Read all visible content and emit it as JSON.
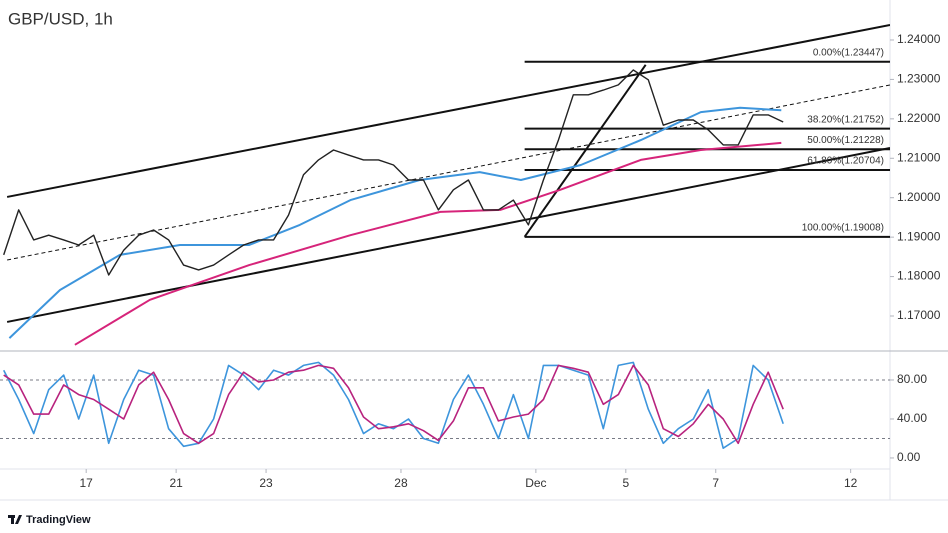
{
  "chart_data": [
    {
      "type": "line",
      "title": "GBP/USD, 1h",
      "xlim": [
        -46,
        429
      ],
      "ylim": [
        1.16138,
        1.25014
      ],
      "yticks": [
        {
          "value": 1.24,
          "label": "1.24000"
        },
        {
          "value": 1.23,
          "label": "1.23000"
        },
        {
          "value": 1.22,
          "label": "1.22000"
        },
        {
          "value": 1.21,
          "label": "1.21000"
        },
        {
          "value": 1.2,
          "label": "1.20000"
        },
        {
          "value": 1.19,
          "label": "1.19000"
        },
        {
          "value": 1.18,
          "label": "1.18000"
        },
        {
          "value": 1.17,
          "label": "1.17000"
        }
      ],
      "price": {
        "color": "#222222",
        "x": [
          -44,
          -36,
          -28,
          -20,
          -12,
          -4,
          4,
          12,
          20,
          28,
          36,
          44,
          52,
          60,
          68,
          76,
          84,
          92,
          100,
          108,
          116,
          124,
          132,
          140,
          148,
          156,
          164,
          172,
          180,
          188,
          196,
          204,
          212,
          220,
          228,
          236,
          244,
          252,
          260,
          268,
          276,
          284,
          292,
          300,
          308,
          316,
          324,
          332,
          340,
          348,
          356,
          364,
          372
        ],
        "values": [
          1.1855,
          1.1969,
          1.1893,
          1.1905,
          1.1893,
          1.188,
          1.1905,
          1.1804,
          1.1867,
          1.1905,
          1.1918,
          1.1893,
          1.1829,
          1.1817,
          1.1829,
          1.1855,
          1.188,
          1.1893,
          1.1893,
          1.1956,
          1.2058,
          1.2096,
          1.2121,
          1.2108,
          1.2096,
          1.2096,
          1.2083,
          1.2045,
          1.2045,
          1.1969,
          1.202,
          1.2045,
          1.1969,
          1.1969,
          1.1994,
          1.1931,
          1.2045,
          1.2146,
          1.2261,
          1.2261,
          1.2273,
          1.2286,
          1.2324,
          1.2299,
          1.2184,
          1.2197,
          1.2197,
          1.2172,
          1.2134,
          1.2134,
          1.221,
          1.221,
          1.2192
        ]
      },
      "ma": [
        {
          "color": "#3d95dc",
          "x": [
            -41,
            -14,
            18,
            50,
            87,
            114,
            141,
            178,
            210,
            232,
            264,
            296,
            328,
            349,
            371
          ],
          "values": [
            1.1644,
            1.1766,
            1.1855,
            1.188,
            1.188,
            1.1931,
            1.1994,
            1.2045,
            1.2065,
            1.2045,
            1.2083,
            1.2146,
            1.2217,
            1.2228,
            1.2222
          ]
        },
        {
          "color": "#d6247a",
          "x": [
            -6,
            34,
            87,
            141,
            189,
            221,
            253,
            296,
            328,
            371
          ],
          "values": [
            1.1627,
            1.1741,
            1.1829,
            1.1905,
            1.1964,
            1.1969,
            1.202,
            1.2096,
            1.2121,
            1.2139
          ]
        }
      ],
      "channels": [
        {
          "x1": -42.2,
          "y1": 1.2002,
          "x2": 429,
          "y2": 1.2438,
          "dashed": false
        },
        {
          "x1": -42.2,
          "y1": 1.1685,
          "x2": 429,
          "y2": 1.2126,
          "dashed": false
        },
        {
          "x1": -42.2,
          "y1": 1.1842,
          "x2": 429,
          "y2": 1.2286,
          "dashed": true
        },
        {
          "x1": 234,
          "y1": 1.19008,
          "x2": 298.6,
          "y2": 1.2337,
          "dashed": false
        }
      ],
      "fib_start": 234,
      "fib": [
        {
          "value": 1.23447,
          "label": "0.00%(1.23447)"
        },
        {
          "value": 1.21752,
          "label": "38.20%(1.21752)"
        },
        {
          "value": 1.21228,
          "label": "50.00%(1.21228)"
        },
        {
          "value": 1.20704,
          "label": "61.80%(1.20704)"
        },
        {
          "value": 1.19008,
          "label": "100.00%(1.19008)"
        }
      ]
    },
    {
      "type": "line",
      "xlim": [
        -46,
        429
      ],
      "ylim": [
        -10.3,
        108.7
      ],
      "yticks": [
        {
          "value": 80,
          "label": "80.00"
        },
        {
          "value": 40,
          "label": "40.00"
        },
        {
          "value": 0,
          "label": "0.00"
        }
      ],
      "bands": [
        20,
        80
      ],
      "xticks": [
        {
          "value": 0,
          "label": "17"
        },
        {
          "value": 48,
          "label": "21"
        },
        {
          "value": 96,
          "label": "23"
        },
        {
          "value": 168,
          "label": "28"
        },
        {
          "value": 240,
          "label": "Dec"
        },
        {
          "value": 288,
          "label": "5"
        },
        {
          "value": 336,
          "label": "7"
        },
        {
          "value": 408,
          "label": "12"
        }
      ],
      "x": [
        -44,
        -36,
        -28,
        -20,
        -12,
        -4,
        4,
        12,
        20,
        28,
        36,
        44,
        52,
        60,
        68,
        76,
        84,
        92,
        100,
        108,
        116,
        124,
        132,
        140,
        148,
        156,
        164,
        172,
        180,
        188,
        196,
        204,
        212,
        220,
        228,
        236,
        244,
        252,
        260,
        268,
        276,
        284,
        292,
        300,
        308,
        316,
        324,
        332,
        340,
        348,
        356,
        364,
        372
      ],
      "series": [
        {
          "color": "#3d95dc",
          "values": [
            90,
            60,
            25,
            70,
            85,
            40,
            85,
            15,
            60,
            90,
            85,
            30,
            12,
            15,
            40,
            95,
            85,
            70,
            90,
            85,
            95,
            98,
            85,
            60,
            25,
            35,
            30,
            40,
            20,
            15,
            60,
            85,
            55,
            20,
            65,
            20,
            95,
            95,
            90,
            85,
            30,
            95,
            98,
            50,
            15,
            30,
            40,
            70,
            10,
            20,
            95,
            80,
            35
          ]
        },
        {
          "color": "#b8237e",
          "values": [
            85,
            75,
            45,
            45,
            75,
            65,
            60,
            50,
            40,
            75,
            88,
            60,
            25,
            15,
            25,
            65,
            88,
            78,
            80,
            88,
            90,
            95,
            92,
            72,
            42,
            30,
            32,
            35,
            28,
            18,
            38,
            72,
            72,
            38,
            42,
            45,
            60,
            95,
            92,
            88,
            55,
            65,
            95,
            75,
            30,
            22,
            35,
            55,
            40,
            15,
            55,
            88,
            50
          ]
        }
      ]
    }
  ],
  "brand": "TradingView"
}
